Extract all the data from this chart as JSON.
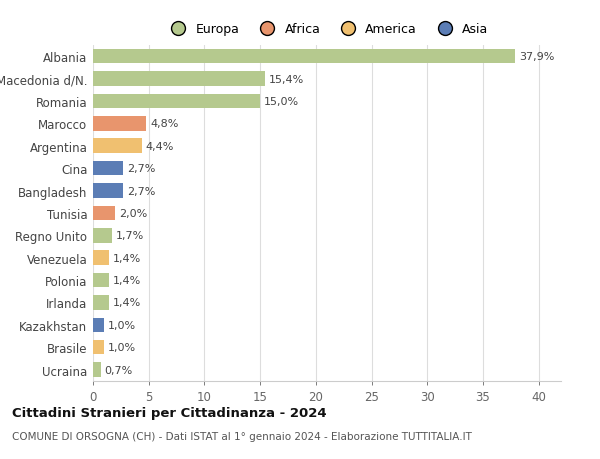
{
  "categories": [
    "Ucraina",
    "Brasile",
    "Kazakhstan",
    "Irlanda",
    "Polonia",
    "Venezuela",
    "Regno Unito",
    "Tunisia",
    "Bangladesh",
    "Cina",
    "Argentina",
    "Marocco",
    "Romania",
    "Macedonia d/N.",
    "Albania"
  ],
  "values": [
    0.7,
    1.0,
    1.0,
    1.4,
    1.4,
    1.4,
    1.7,
    2.0,
    2.7,
    2.7,
    4.4,
    4.8,
    15.0,
    15.4,
    37.9
  ],
  "labels": [
    "0,7%",
    "1,0%",
    "1,0%",
    "1,4%",
    "1,4%",
    "1,4%",
    "1,7%",
    "2,0%",
    "2,7%",
    "2,7%",
    "4,4%",
    "4,8%",
    "15,0%",
    "15,4%",
    "37,9%"
  ],
  "colors": [
    "#b5c98e",
    "#f0c070",
    "#5b7db5",
    "#b5c98e",
    "#b5c98e",
    "#f0c070",
    "#b5c98e",
    "#e8956d",
    "#5b7db5",
    "#5b7db5",
    "#f0c070",
    "#e8956d",
    "#b5c98e",
    "#b5c98e",
    "#b5c98e"
  ],
  "legend_labels": [
    "Europa",
    "Africa",
    "America",
    "Asia"
  ],
  "legend_colors": [
    "#b5c98e",
    "#e8956d",
    "#f0c070",
    "#5b7db5"
  ],
  "title": "Cittadini Stranieri per Cittadinanza - 2024",
  "subtitle": "COMUNE DI ORSOGNA (CH) - Dati ISTAT al 1° gennaio 2024 - Elaborazione TUTTITALIA.IT",
  "xlim": [
    0,
    42
  ],
  "xticks": [
    0,
    5,
    10,
    15,
    20,
    25,
    30,
    35,
    40
  ],
  "background_color": "#ffffff",
  "grid_color": "#dddddd",
  "bar_height": 0.65
}
